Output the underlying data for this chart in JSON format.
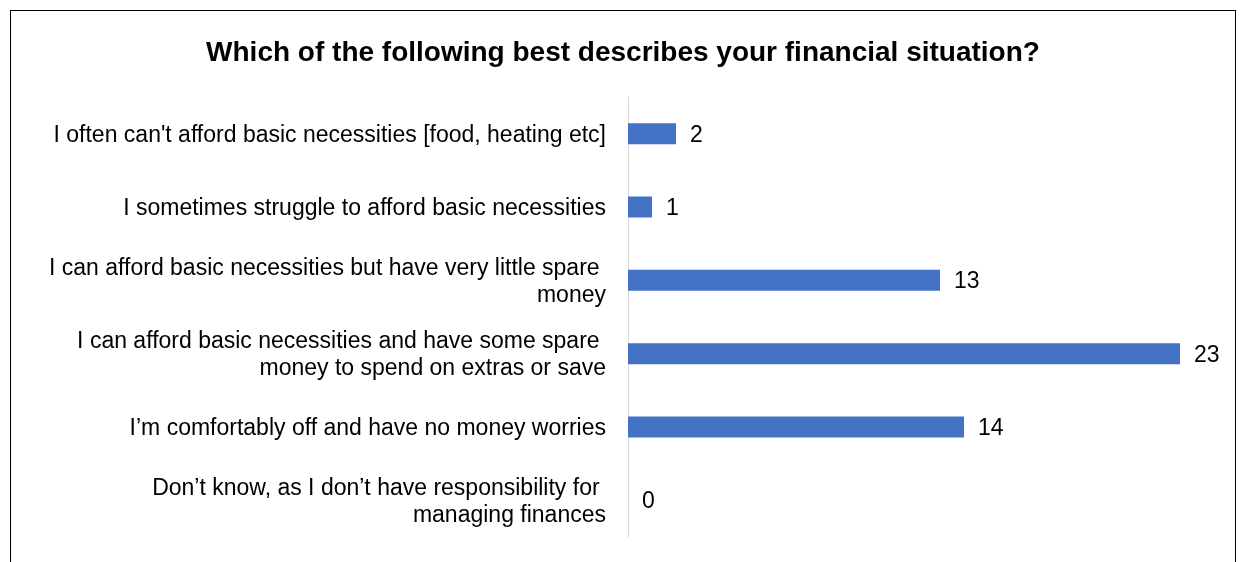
{
  "chart_data": {
    "type": "bar",
    "orientation": "horizontal",
    "title": "Which of the following best describes your financial situation?",
    "categories": [
      "I often can't afford basic necessities [food, heating etc]",
      "I sometimes struggle to afford basic necessities",
      "I can afford basic necessities but have very little spare money",
      "I can afford basic necessities and have some spare money to spend on extras or save",
      "I’m comfortably off and have no money worries",
      "Don’t know, as I don’t have responsibility for managing finances"
    ],
    "values": [
      2,
      1,
      13,
      23,
      14,
      0
    ],
    "color": "#4472c4",
    "data_labels": true,
    "tick_labels": "y"
  }
}
